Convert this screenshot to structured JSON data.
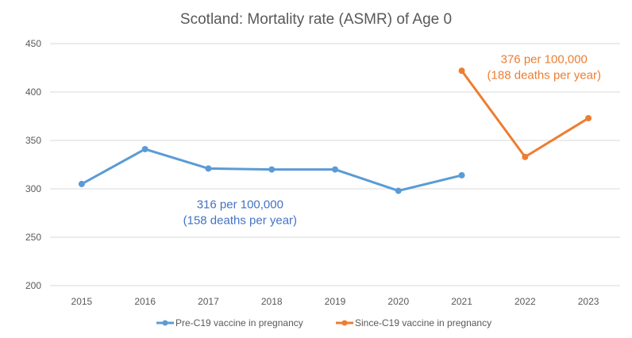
{
  "chart_data": {
    "type": "line",
    "title": "Scotland: Mortality rate (ASMR) of Age 0",
    "xlabel": "",
    "ylabel": "",
    "categories": [
      "2015",
      "2016",
      "2017",
      "2018",
      "2019",
      "2020",
      "2021",
      "2022",
      "2023"
    ],
    "ylim": [
      200,
      450
    ],
    "yticks": [
      200,
      250,
      300,
      350,
      400,
      450
    ],
    "grid": true,
    "legend_position": "bottom",
    "series": [
      {
        "name": "Pre-C19 vaccine in pregnancy",
        "color": "#5B9BD5",
        "values": [
          305,
          341,
          321,
          320,
          320,
          298,
          314,
          null,
          null
        ]
      },
      {
        "name": "Since-C19 vaccine in pregnancy",
        "color": "#ED7D31",
        "values": [
          null,
          null,
          null,
          null,
          null,
          null,
          422,
          333,
          373
        ]
      }
    ],
    "annotations": [
      {
        "series": 0,
        "lines": [
          "316 per 100,000",
          "(158 deaths per year)"
        ],
        "color": "#4472C4",
        "anchor_x": 2017.5,
        "anchor_y": 280
      },
      {
        "series": 1,
        "lines": [
          "376 per 100,000",
          "(188 deaths per year)"
        ],
        "color": "#ED7D31",
        "anchor_x": 2022.3,
        "anchor_y": 430
      }
    ]
  }
}
